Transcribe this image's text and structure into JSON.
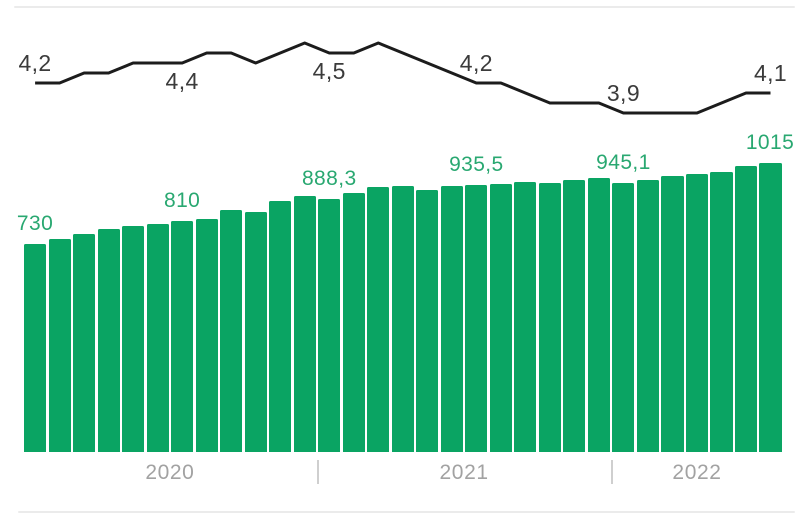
{
  "chart_data": {
    "type": "combo",
    "description": "Monthly bar series with a secondary line series above it; semi-annual value labels; decimal commas",
    "n_points": 31,
    "x_axis": {
      "year_groups": [
        {
          "label": "2020",
          "from": 0,
          "to": 11
        },
        {
          "label": "2021",
          "from": 12,
          "to": 23
        },
        {
          "label": "2022",
          "from": 24,
          "to": 30
        }
      ],
      "separator_glyph": "|"
    },
    "series": [
      {
        "name": "line-series",
        "type": "line",
        "color": "#1c1c1c",
        "label_color": "#3b3b3b",
        "visible_range": [
          3.9,
          4.6
        ],
        "values": [
          4.2,
          4.2,
          4.3,
          4.3,
          4.4,
          4.4,
          4.4,
          4.5,
          4.5,
          4.4,
          4.5,
          4.6,
          4.5,
          4.5,
          4.6,
          4.5,
          4.4,
          4.3,
          4.2,
          4.2,
          4.1,
          4.0,
          4.0,
          4.0,
          3.9,
          3.9,
          3.9,
          3.9,
          4.0,
          4.1,
          4.1
        ],
        "labels": [
          {
            "index": 0,
            "text": "4,2",
            "placement": "above"
          },
          {
            "index": 6,
            "text": "4,4",
            "placement": "below"
          },
          {
            "index": 12,
            "text": "4,5",
            "placement": "below"
          },
          {
            "index": 18,
            "text": "4,2",
            "placement": "above"
          },
          {
            "index": 24,
            "text": "3,9",
            "placement": "above"
          },
          {
            "index": 30,
            "text": "4,1",
            "placement": "above"
          }
        ]
      },
      {
        "name": "bar-series",
        "type": "bar",
        "color": "#0aa463",
        "label_color": "#29a871",
        "ylim": [
          0,
          1015
        ],
        "values": [
          730,
          748,
          766,
          782,
          793,
          801,
          810,
          818,
          848,
          842,
          880,
          898,
          888.3,
          908,
          929,
          932,
          918,
          935,
          935.5,
          940,
          947,
          943,
          953,
          963,
          945.1,
          956,
          970,
          974,
          984,
          1005,
          1015
        ],
        "labels": [
          {
            "index": 0,
            "text": "730"
          },
          {
            "index": 6,
            "text": "810"
          },
          {
            "index": 12,
            "text": "888,3"
          },
          {
            "index": 18,
            "text": "935,5"
          },
          {
            "index": 24,
            "text": "945,1"
          },
          {
            "index": 30,
            "text": "1015"
          }
        ]
      }
    ],
    "colors": {
      "bar_green": "#0aa463",
      "bar_label_green": "#29a871",
      "line_black": "#1c1c1c",
      "line_label_gray": "#3b3b3b",
      "year_label_gray": "#a2a2a2",
      "separator_gray": "#cfcfcf",
      "hairline_gray": "#ebebeb",
      "background": "#ffffff"
    }
  }
}
